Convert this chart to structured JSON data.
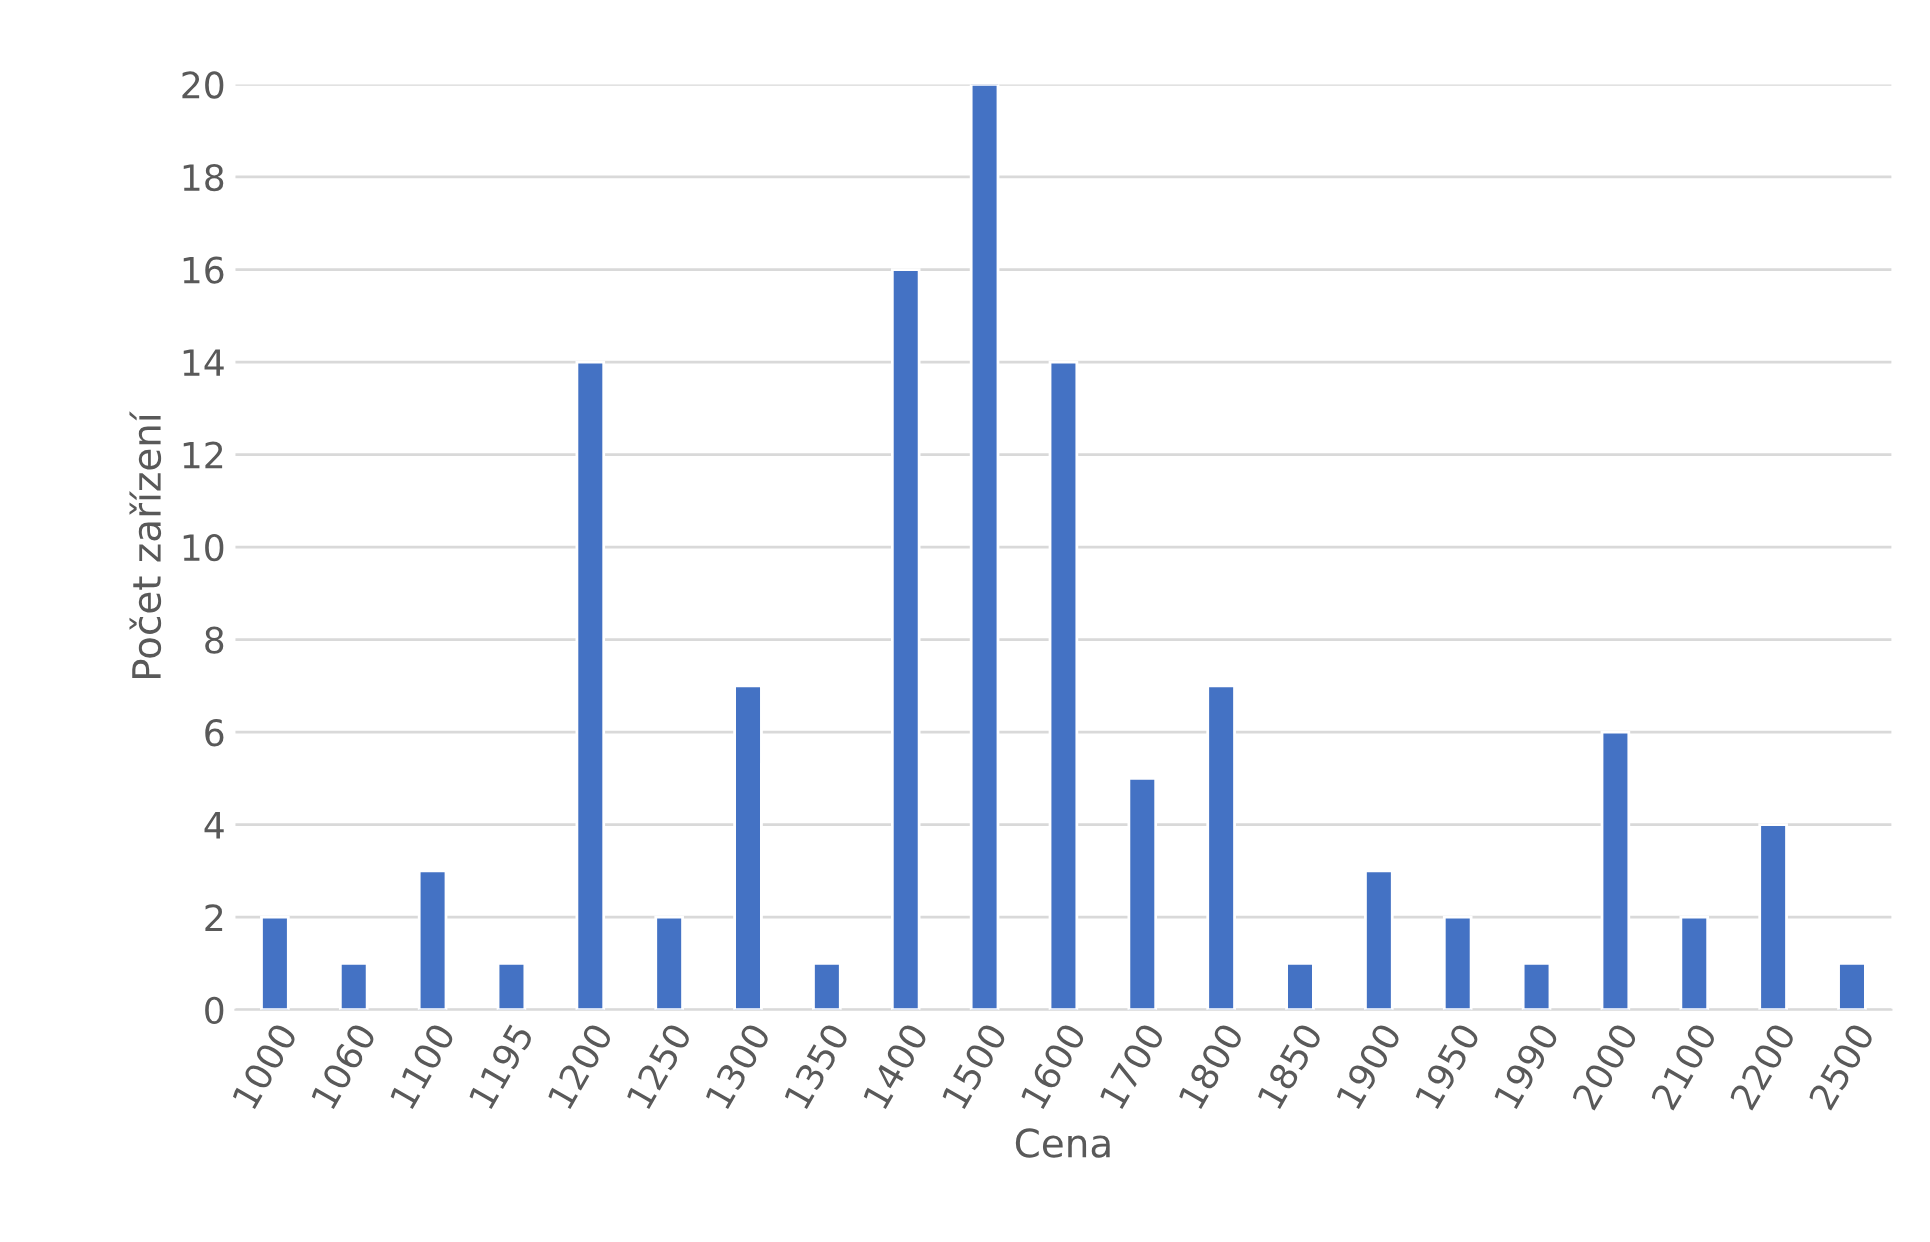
{
  "chart_data": {
    "type": "bar",
    "xlabel": "Cena",
    "ylabel": "Počet zařízení",
    "categories": [
      "1000",
      "1060",
      "1100",
      "1195",
      "1200",
      "1250",
      "1300",
      "1350",
      "1400",
      "1500",
      "1600",
      "1700",
      "1800",
      "1850",
      "1900",
      "1950",
      "1990",
      "2000",
      "2100",
      "2200",
      "2500"
    ],
    "values": [
      2,
      1,
      3,
      1,
      14,
      2,
      7,
      1,
      16,
      20,
      14,
      5,
      7,
      1,
      3,
      2,
      1,
      6,
      2,
      4,
      1
    ],
    "color": "#4472c4",
    "ylim": [
      0,
      20
    ],
    "yticks": [
      0,
      2,
      4,
      6,
      8,
      10,
      12,
      14,
      16,
      18,
      20
    ],
    "grid": "y"
  }
}
